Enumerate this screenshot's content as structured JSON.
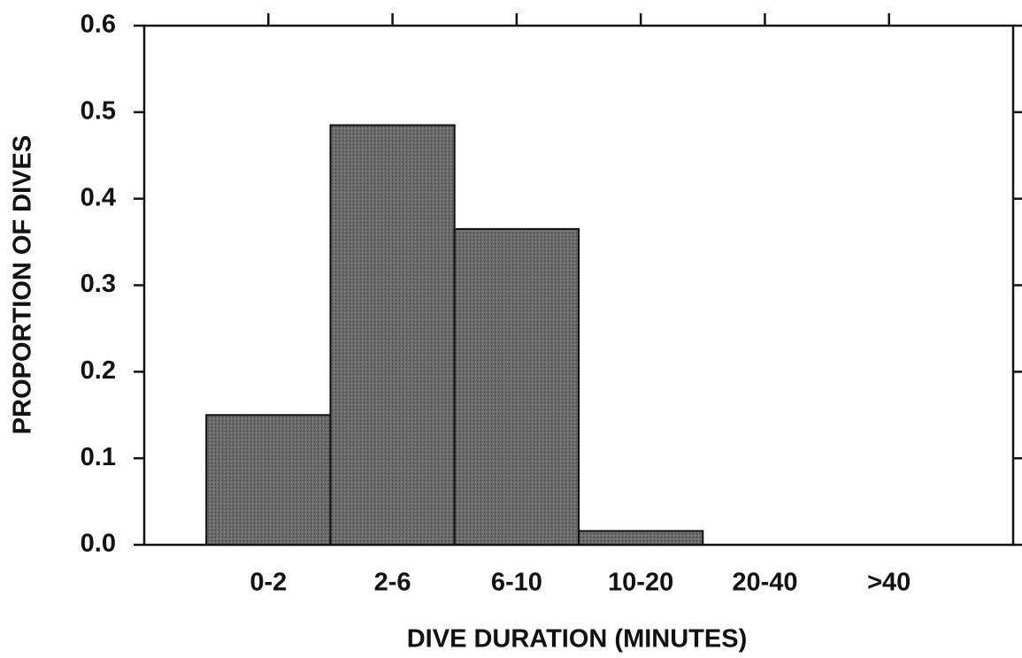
{
  "chart_data": {
    "type": "bar",
    "x_label": "DIVE DURATION (MINUTES)",
    "y_label": "PROPORTION OF DIVES",
    "categories": [
      "0-2",
      "2-6",
      "6-10",
      "10-20",
      "20-40",
      ">40"
    ],
    "values": [
      0.15,
      0.485,
      0.365,
      0.016,
      0,
      0
    ],
    "color": "#585858",
    "ylim": [
      0,
      0.6
    ],
    "yticks": [
      {
        "value": 0,
        "label": "0.0"
      },
      0.1,
      0.2,
      0.3,
      0.4,
      0.5,
      0.6
    ],
    "grid": false
  }
}
